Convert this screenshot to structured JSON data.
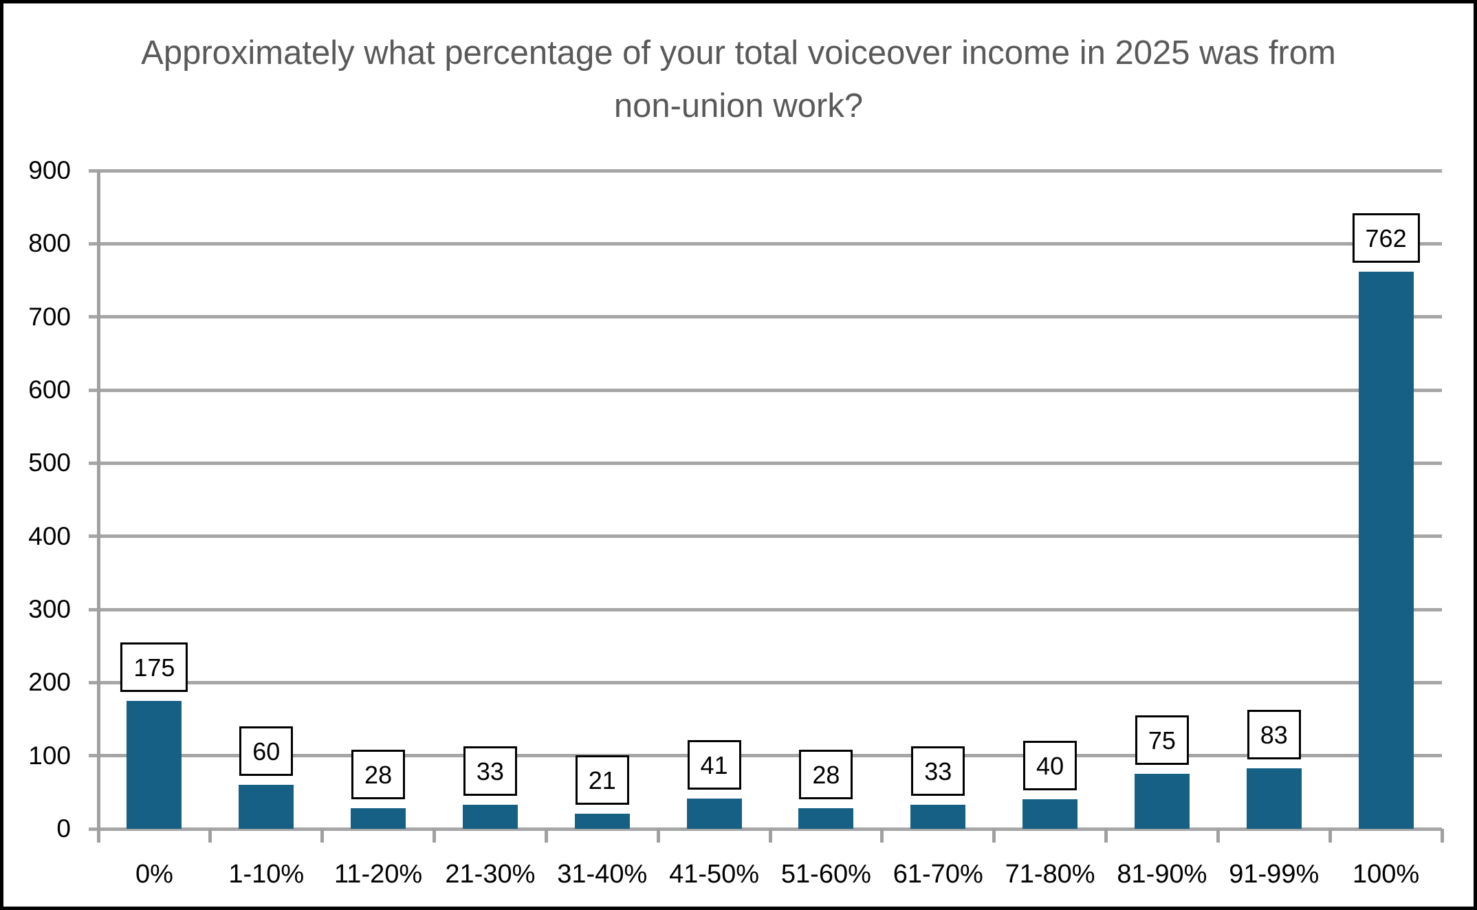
{
  "chart_data": {
    "type": "bar",
    "title": "Approximately what percentage of your total voiceover income in 2025 was from non-union work?",
    "categories": [
      "0%",
      "1-10%",
      "11-20%",
      "21-30%",
      "31-40%",
      "41-50%",
      "51-60%",
      "61-70%",
      "71-80%",
      "81-90%",
      "91-99%",
      "100%"
    ],
    "values": [
      175,
      60,
      28,
      33,
      21,
      41,
      28,
      33,
      40,
      75,
      83,
      762
    ],
    "data_labels": [
      175,
      60,
      28,
      33,
      21,
      41,
      28,
      33,
      40,
      75,
      83,
      762
    ],
    "xlabel": "",
    "ylabel": "",
    "ylim": [
      0,
      900
    ],
    "yticks": [
      0,
      100,
      200,
      300,
      400,
      500,
      600,
      700,
      800,
      900
    ],
    "grid": "horizontal",
    "legend": "none",
    "data_label_style": "boxed",
    "colors": {
      "bar_fill": "#166086",
      "gridline": "#a6a6a6",
      "axis_line": "#a0a0a0",
      "title_text": "#595959",
      "label_text": "#000000",
      "frame_border": "#000000",
      "background": "#ffffff"
    }
  }
}
